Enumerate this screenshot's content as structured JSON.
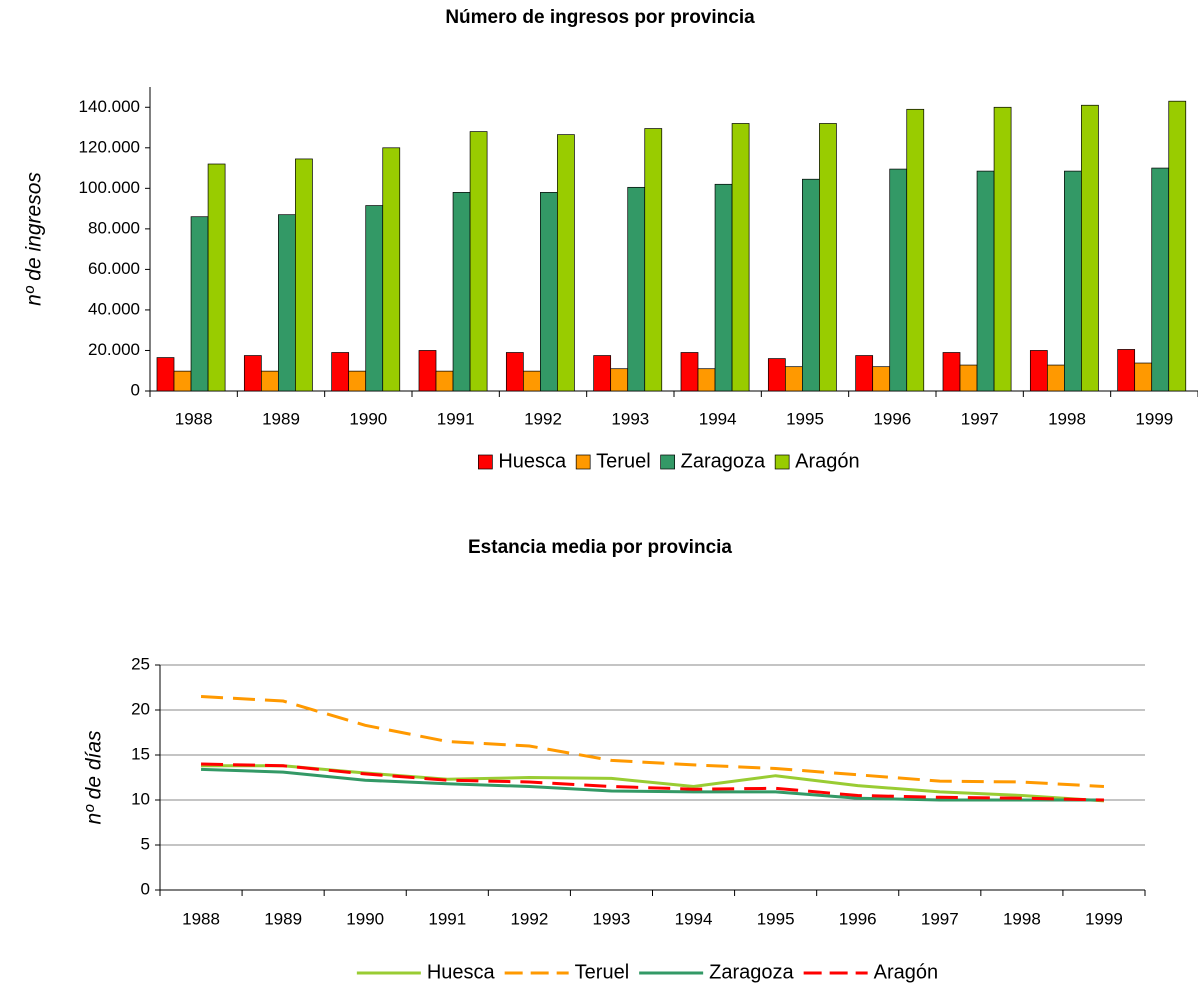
{
  "chart_data": [
    {
      "type": "bar",
      "title": "Número de ingresos por provincia",
      "ylabel": "nº de ingresos",
      "categories": [
        "1988",
        "1989",
        "1990",
        "1991",
        "1992",
        "1993",
        "1994",
        "1995",
        "1996",
        "1997",
        "1998",
        "1999"
      ],
      "series": [
        {
          "name": "Huesca",
          "color": "#ff0000",
          "values": [
            16500,
            17500,
            19000,
            20000,
            19000,
            17500,
            19000,
            16000,
            17500,
            19000,
            20000,
            20500
          ]
        },
        {
          "name": "Teruel",
          "color": "#ff9900",
          "values": [
            9800,
            9800,
            9800,
            9800,
            9800,
            11000,
            11000,
            12000,
            12000,
            12800,
            12800,
            13800
          ]
        },
        {
          "name": "Zaragoza",
          "color": "#339966",
          "values": [
            86000,
            87000,
            91500,
            98000,
            98000,
            100500,
            102000,
            104500,
            109500,
            108500,
            108500,
            110000
          ]
        },
        {
          "name": "Aragón",
          "color": "#99cc00",
          "values": [
            112000,
            114500,
            120000,
            128000,
            126500,
            129500,
            132000,
            132000,
            139000,
            140000,
            141000,
            143000
          ]
        }
      ],
      "ylim": [
        0,
        150000
      ],
      "yticks": [
        0,
        {
          "value": 20000,
          "label": "20.000"
        },
        {
          "value": 40000,
          "label": "40.000"
        },
        {
          "value": 60000,
          "label": "60.000"
        },
        {
          "value": 80000,
          "label": "80.000"
        },
        {
          "value": 100000,
          "label": "100.000"
        },
        {
          "value": 120000,
          "label": "120.000"
        },
        {
          "value": 140000,
          "label": "140.000"
        }
      ],
      "grid": false,
      "legend": "bottom"
    },
    {
      "type": "line",
      "title": "Estancia media por provincia",
      "ylabel": "nº de días",
      "categories": [
        "1988",
        "1989",
        "1990",
        "1991",
        "1992",
        "1993",
        "1994",
        "1995",
        "1996",
        "1997",
        "1998",
        "1999"
      ],
      "series": [
        {
          "name": "Huesca",
          "color": "#99cc33",
          "dash": false,
          "values": [
            13.8,
            13.8,
            13.0,
            12.3,
            12.5,
            12.4,
            11.5,
            12.7,
            11.6,
            10.9,
            10.5,
            9.9
          ]
        },
        {
          "name": "Teruel",
          "color": "#ff9900",
          "dash": true,
          "values": [
            21.5,
            21.0,
            18.3,
            16.5,
            16.0,
            14.4,
            13.9,
            13.5,
            12.8,
            12.1,
            12.0,
            11.5
          ]
        },
        {
          "name": "Zaragoza",
          "color": "#339966",
          "dash": false,
          "values": [
            13.4,
            13.1,
            12.2,
            11.8,
            11.5,
            11.0,
            10.9,
            10.9,
            10.2,
            10.0,
            10.0,
            10.0
          ]
        },
        {
          "name": "Aragón",
          "color": "#ff0000",
          "dash": true,
          "values": [
            14.0,
            13.8,
            12.9,
            12.2,
            12.0,
            11.5,
            11.2,
            11.3,
            10.5,
            10.3,
            10.2,
            10.0
          ]
        }
      ],
      "ylim": [
        0,
        25
      ],
      "yticks": [
        0,
        5,
        10,
        15,
        20,
        25
      ],
      "grid": true,
      "legend": "bottom"
    }
  ]
}
